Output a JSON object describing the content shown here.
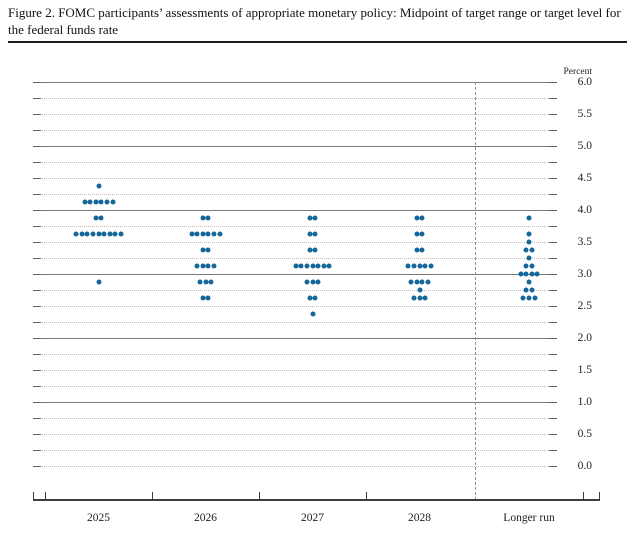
{
  "title": "Figure 2. FOMC participants’ assessments of appropriate monetary policy: Midpoint of target range or target level for the federal funds rate",
  "chart_data": {
    "type": "scatter",
    "subtype": "fomc-dot-plot",
    "title": "Figure 2. FOMC participants’ assessments of appropriate monetary policy: Midpoint of target range or target level for the federal funds rate",
    "ylabel": "Percent",
    "percent_label": "Percent",
    "ylim": [
      0.0,
      6.0
    ],
    "y_label_step": 0.5,
    "y_grid_step": 0.25,
    "grid": "dotted-quarters-solid-integers",
    "y_tick_labels": [
      "6.0",
      "5.5",
      "5.0",
      "4.5",
      "4.0",
      "3.5",
      "3.0",
      "2.5",
      "2.0",
      "1.5",
      "1.0",
      "0.5",
      "0.0"
    ],
    "categories": [
      "2025",
      "2026",
      "2027",
      "2028",
      "Longer run"
    ],
    "separator_before_category": "Longer run",
    "dot_color": "#15679b",
    "series": [
      {
        "category": "2025",
        "dots": [
          {
            "rate": 4.375,
            "count": 1
          },
          {
            "rate": 4.125,
            "count": 6
          },
          {
            "rate": 3.875,
            "count": 2
          },
          {
            "rate": 3.625,
            "count": 9
          },
          {
            "rate": 2.875,
            "count": 1
          }
        ]
      },
      {
        "category": "2026",
        "dots": [
          {
            "rate": 3.875,
            "count": 2
          },
          {
            "rate": 3.625,
            "count": 6
          },
          {
            "rate": 3.375,
            "count": 2
          },
          {
            "rate": 3.125,
            "count": 4
          },
          {
            "rate": 2.875,
            "count": 3
          },
          {
            "rate": 2.625,
            "count": 2
          }
        ]
      },
      {
        "category": "2027",
        "dots": [
          {
            "rate": 3.875,
            "count": 2
          },
          {
            "rate": 3.625,
            "count": 2
          },
          {
            "rate": 3.375,
            "count": 2
          },
          {
            "rate": 3.125,
            "count": 7
          },
          {
            "rate": 2.875,
            "count": 3
          },
          {
            "rate": 2.625,
            "count": 2
          },
          {
            "rate": 2.375,
            "count": 1
          }
        ]
      },
      {
        "category": "2028",
        "dots": [
          {
            "rate": 3.875,
            "count": 2
          },
          {
            "rate": 3.625,
            "count": 2
          },
          {
            "rate": 3.375,
            "count": 2
          },
          {
            "rate": 3.125,
            "count": 5
          },
          {
            "rate": 2.875,
            "count": 4
          },
          {
            "rate": 2.75,
            "count": 1
          },
          {
            "rate": 2.625,
            "count": 3
          }
        ]
      },
      {
        "category": "Longer run",
        "dots": [
          {
            "rate": 3.875,
            "count": 1
          },
          {
            "rate": 3.625,
            "count": 1
          },
          {
            "rate": 3.5,
            "count": 1
          },
          {
            "rate": 3.375,
            "count": 2
          },
          {
            "rate": 3.25,
            "count": 1
          },
          {
            "rate": 3.125,
            "count": 2
          },
          {
            "rate": 3.0,
            "count": 4
          },
          {
            "rate": 2.875,
            "count": 1
          },
          {
            "rate": 2.75,
            "count": 2
          },
          {
            "rate": 2.625,
            "count": 3
          }
        ]
      }
    ]
  }
}
